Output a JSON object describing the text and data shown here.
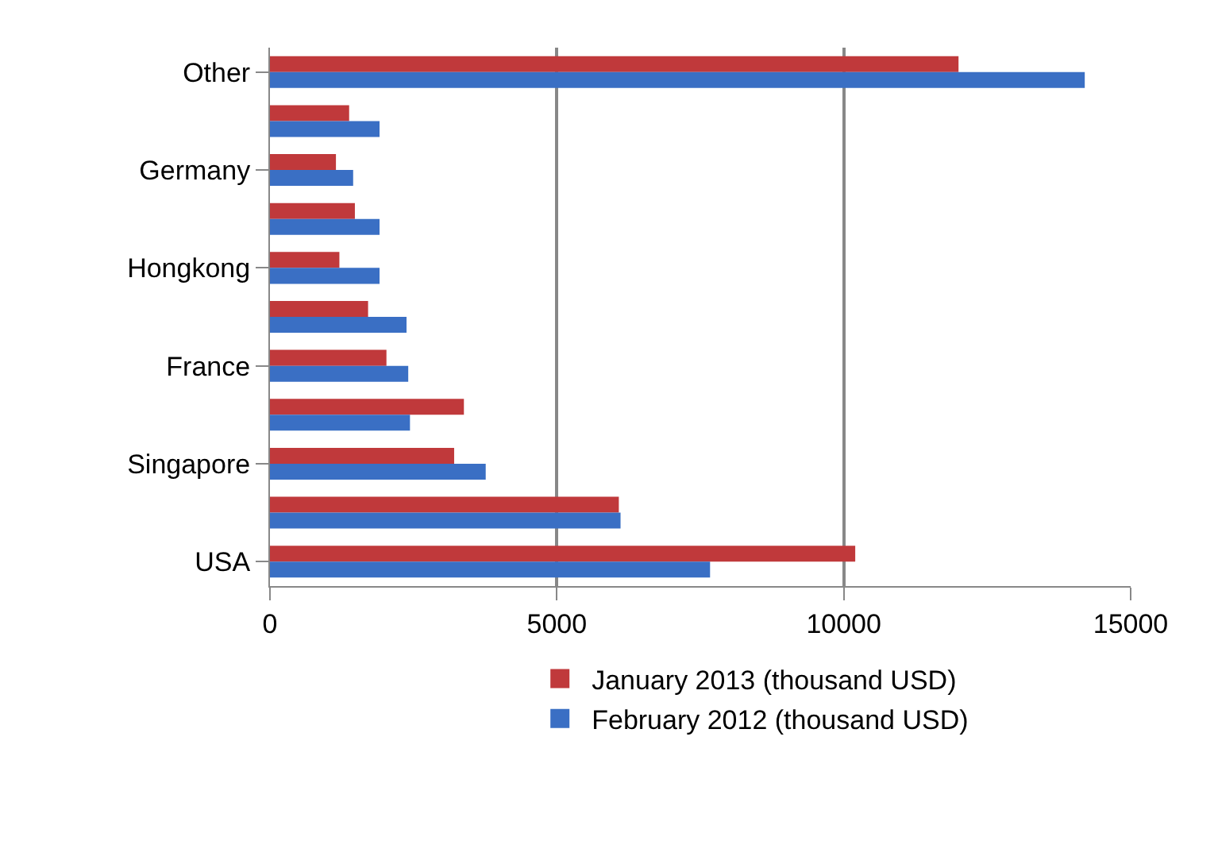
{
  "chart_data": {
    "type": "bar",
    "orientation": "horizontal",
    "categories": [
      "Other",
      null,
      "Germany",
      null,
      "Hongkong",
      null,
      "France",
      null,
      "Singapore",
      null,
      "USA"
    ],
    "series": [
      {
        "name": "January 2013 (thousand USD)",
        "color": "#c0393b",
        "values": [
          12000,
          1380,
          1150,
          1480,
          1210,
          1710,
          2030,
          3380,
          3210,
          6080,
          10200
        ]
      },
      {
        "name": "February 2012 (thousand USD)",
        "color": "#3a6fc4",
        "values": [
          14200,
          1910,
          1450,
          1910,
          1910,
          2380,
          2410,
          2440,
          3760,
          6110,
          7670
        ]
      }
    ],
    "xlim": [
      0,
      15000
    ],
    "xticks": [
      0,
      5000,
      10000,
      15000
    ],
    "grid": "x",
    "legend": "bottom"
  }
}
